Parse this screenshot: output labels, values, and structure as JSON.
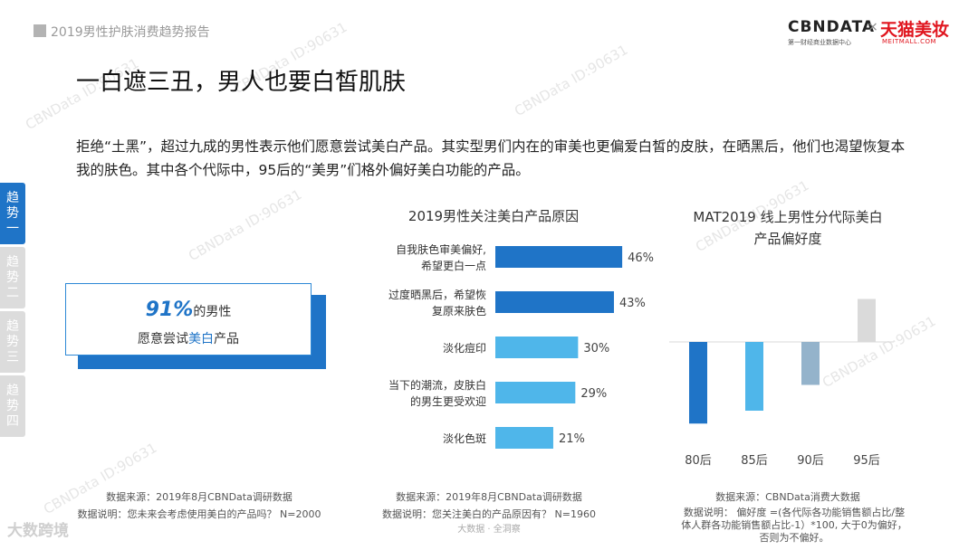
{
  "header": {
    "report_title": "2019男性护肤消费趋势报告"
  },
  "logos": {
    "cbn": "CBNDATA",
    "cbn_sub": "第一财经商业数据中心",
    "separator": "×",
    "tmall": "天猫美妆",
    "tmall_sub": "MEITMALL.COM"
  },
  "page": {
    "title": "一白遮三丑，男人也要白皙肌肤",
    "intro": "拒绝“土黑”，超过九成的男性表示他们愿意尝试美白产品。其实型男们内在的审美也更偏爱白皙的皮肤，在晒黑后，他们也渴望恢复本我的肤色。其中各个代际中，95后的“美男”们格外偏好美白功能的产品。"
  },
  "sidebar": {
    "tabs": [
      {
        "label": "趋势一",
        "active": true
      },
      {
        "label": "趋势二",
        "active": false
      },
      {
        "label": "趋势三",
        "active": false
      },
      {
        "label": "趋势四",
        "active": false
      }
    ]
  },
  "kpi": {
    "pct": "91%",
    "line1_suffix": "的男性",
    "line2_pre": "愿意尝试",
    "line2_highlight": "美白",
    "line2_post": "产品"
  },
  "footers": {
    "left_source": "数据来源：2019年8月CBNData调研数据",
    "left_note": "数据说明：您未来会考虑使用美白的产品吗？ N=2000",
    "mid_source": "数据来源：2019年8月CBNData调研数据",
    "mid_note": "数据说明：您关注美白的产品原因有？ N=1960",
    "right_source": "数据来源：CBNData消费大数据",
    "right_note": "数据说明：  偏好度 =(各代际各功能销售额占比/整体人群各功能销售额占比-1）*100, 大于0为偏好，否则为不偏好。"
  },
  "watermark": {
    "text": "CBNData ID:90631",
    "bottom_left": "大数跨境",
    "bottom_mid": "大数据 · 全洞察"
  },
  "colors": {
    "accent": "#1f74c7",
    "light": "#4fb6ea",
    "muted": "#94b3cb",
    "grey": "#dadada"
  },
  "chart_data": [
    {
      "type": "bar",
      "orientation": "horizontal",
      "title": "2019男性关注美白产品原因",
      "categories": [
        [
          "自我肤色审美偏好,",
          "希望更白一点"
        ],
        [
          "过度晒黑后，希望恢",
          "复原来肤色"
        ],
        [
          "淡化痘印"
        ],
        [
          "当下的潮流，皮肤白",
          "的男生更受欢迎"
        ],
        [
          "淡化色斑"
        ]
      ],
      "values": [
        46,
        43,
        30,
        29,
        21
      ],
      "value_labels": [
        "46%",
        "43%",
        "30%",
        "29%",
        "21%"
      ],
      "colors": [
        "#1f74c7",
        "#1f74c7",
        "#4fb6ea",
        "#4fb6ea",
        "#4fb6ea"
      ],
      "xlim": [
        0,
        50
      ]
    },
    {
      "type": "bar",
      "title": "MAT2019 线上男性分代际美白产品偏好度",
      "title_lines": [
        "MAT2019 线上男性分代际美白",
        "产品偏好度"
      ],
      "categories": [
        "80后",
        "85后",
        "90后",
        "95后"
      ],
      "values": [
        -19,
        -16,
        -10,
        10
      ],
      "colors": [
        "#1f74c7",
        "#4fb6ea",
        "#94b3cb",
        "#dadada"
      ],
      "ylim": [
        -20,
        10
      ]
    }
  ]
}
